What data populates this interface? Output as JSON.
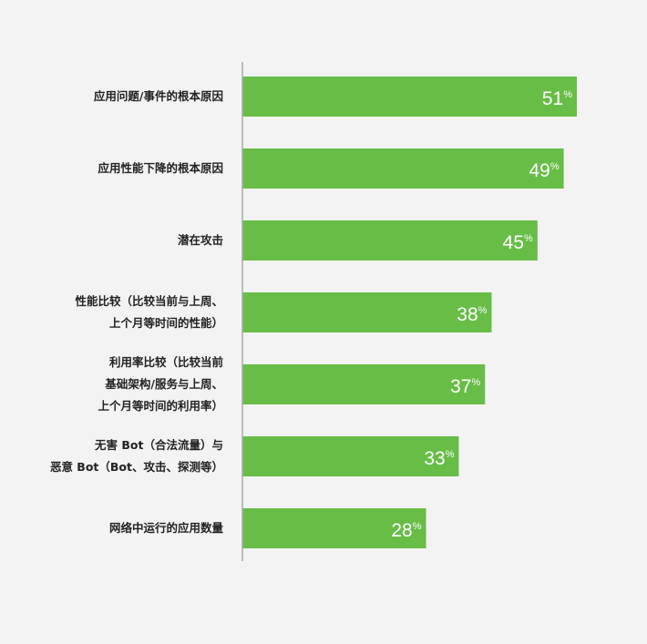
{
  "chart_data": {
    "type": "bar",
    "orientation": "horizontal",
    "categories": [
      [
        "应用问题/事件的根本原因"
      ],
      [
        "应用性能下降的根本原因"
      ],
      [
        "潜在攻击"
      ],
      [
        "性能比较（比较当前与上周、",
        "上个月等时间的性能）"
      ],
      [
        "利用率比较（比较当前",
        "基础架构/服务与上周、",
        "上个月等时间的利用率）"
      ],
      [
        "无害 Bot（合法流量）与",
        "恶意 Bot（Bot、攻击、探测等）"
      ],
      [
        "网络中运行的应用数量"
      ]
    ],
    "values": [
      51,
      49,
      45,
      38,
      37,
      33,
      28
    ],
    "value_unit": "%",
    "xlim": [
      0,
      51
    ],
    "grid": false,
    "legend": "none",
    "bar_color": "#67bd46",
    "axis_color": "#aaaaaa",
    "label_color": "#222222"
  }
}
